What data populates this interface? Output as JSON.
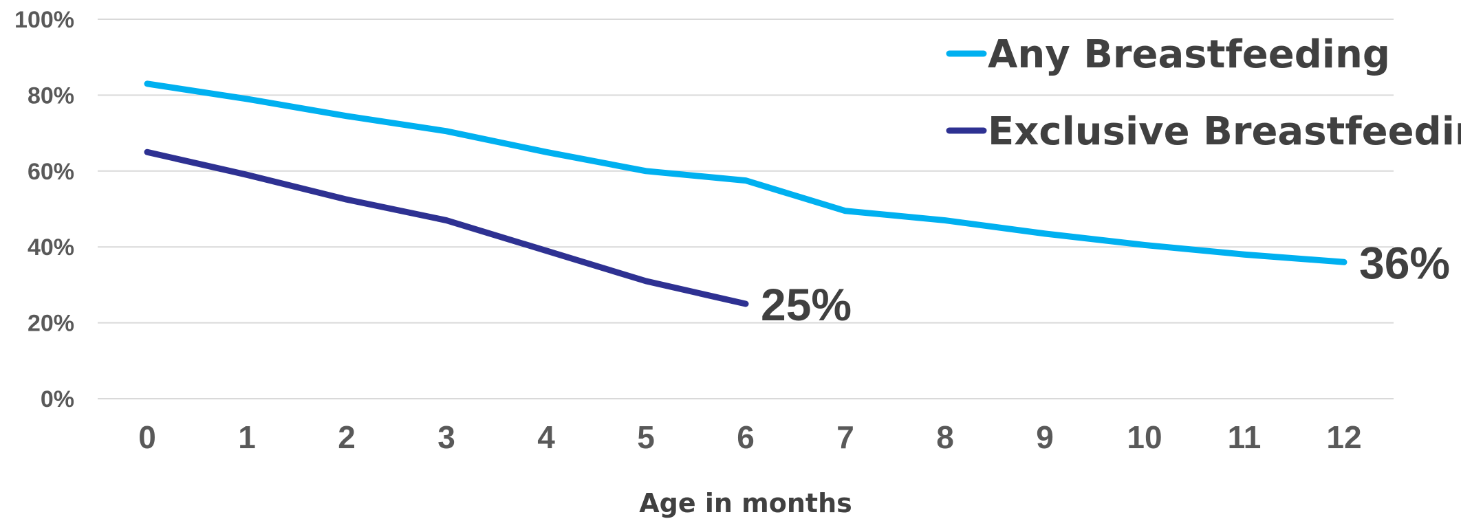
{
  "chart_data": {
    "type": "line",
    "title": "",
    "xlabel": "Age in months",
    "ylabel": "",
    "x": [
      0,
      1,
      2,
      3,
      4,
      5,
      6,
      7,
      8,
      9,
      10,
      11,
      12
    ],
    "ylim": [
      0,
      100
    ],
    "y_ticks": [
      "0%",
      "20%",
      "40%",
      "60%",
      "80%",
      "100%"
    ],
    "grid": true,
    "legend_position": "top-right",
    "series": [
      {
        "name": "Any Breastfeeding",
        "color": "#00b0f0",
        "values": [
          83,
          79,
          74.5,
          70.5,
          65,
          60,
          57.5,
          49.5,
          47,
          43.5,
          40.5,
          38,
          36
        ],
        "end_label": "36%"
      },
      {
        "name": "Exclusive Breastfeeding",
        "color": "#2e3192",
        "values": [
          65,
          59,
          52.5,
          47,
          39,
          31,
          25,
          null,
          null,
          null,
          null,
          null,
          null
        ],
        "end_label": "25%"
      }
    ]
  }
}
